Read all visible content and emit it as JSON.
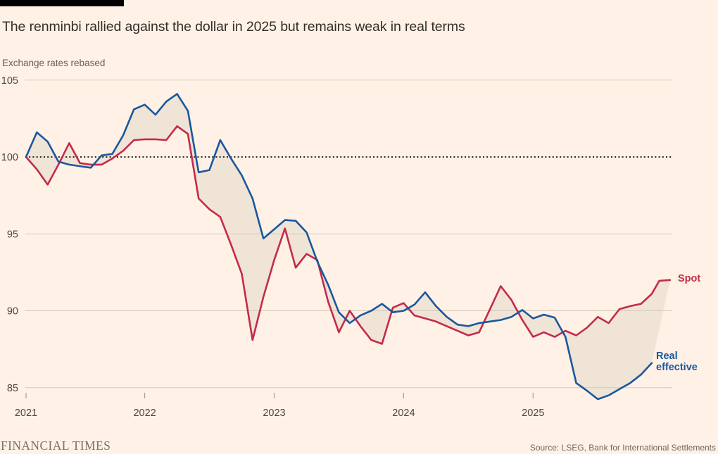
{
  "header": {
    "title": "The renminbi rallied against the dollar in 2025 but remains weak in real terms",
    "subtitle": "Exchange rates rebased"
  },
  "legend": {
    "spot": "Spot",
    "real_effective": "Real effective"
  },
  "footer": {
    "brand": "FINANCIAL TIMES",
    "source": "Source: LSEG, Bank for International Settlements"
  },
  "colors": {
    "background": "#fff1e5",
    "top_bar": "#000000",
    "title_text": "#33302a",
    "muted_text": "#66605b",
    "axis_text": "#4d4742",
    "tick_mark": "#a89e92",
    "grid": "#d5cabd",
    "baseline_dotted": "#2b2824",
    "spot": "#c42a4c",
    "real_effective": "#1a579e",
    "band_fill": "#f0e4d6",
    "brand_text": "#7a7166"
  },
  "chart_data": {
    "type": "line",
    "title": "The renminbi rallied against the dollar in 2025 but remains weak in real terms",
    "ylabel": "Exchange rates rebased",
    "baseline": 100,
    "y_ticks": [
      105,
      100,
      95,
      90,
      85
    ],
    "ylim": [
      83.5,
      105.8
    ],
    "grid": "horizontal",
    "legend_position": "end-of-line-labels",
    "x_unit": "months since 2021-02 (first point Feb 2021, rebased = 100)",
    "x_ticks": [
      {
        "label": "2021",
        "m": 0
      },
      {
        "label": "2022",
        "m": 11
      },
      {
        "label": "2023",
        "m": 23
      },
      {
        "label": "2024",
        "m": 35
      },
      {
        "label": "2025",
        "m": 47
      }
    ],
    "band_between_series": true,
    "series": [
      {
        "name": "Spot",
        "color": "#c42a4c",
        "points": [
          [
            0,
            100
          ],
          [
            1,
            99.2
          ],
          [
            2,
            98.2
          ],
          [
            3,
            99.5
          ],
          [
            4,
            100.9
          ],
          [
            5,
            99.6
          ],
          [
            6,
            99.5
          ],
          [
            7,
            99.5
          ],
          [
            8,
            99.9
          ],
          [
            9,
            100.4
          ],
          [
            10,
            101.1
          ],
          [
            11,
            101.15
          ],
          [
            12,
            101.15
          ],
          [
            13,
            101.1
          ],
          [
            14,
            102.0
          ],
          [
            15,
            101.5
          ],
          [
            16,
            97.3
          ],
          [
            17,
            96.6
          ],
          [
            18,
            96.1
          ],
          [
            19,
            94.3
          ],
          [
            20,
            92.4
          ],
          [
            21,
            88.1
          ],
          [
            22,
            90.9
          ],
          [
            23,
            93.3
          ],
          [
            24,
            95.35
          ],
          [
            25,
            92.8
          ],
          [
            26,
            93.7
          ],
          [
            27,
            93.3
          ],
          [
            28,
            90.6
          ],
          [
            29,
            88.6
          ],
          [
            30,
            90.0
          ],
          [
            31,
            89.0
          ],
          [
            32,
            88.1
          ],
          [
            33,
            87.85
          ],
          [
            34,
            90.2
          ],
          [
            35,
            90.5
          ],
          [
            36,
            89.7
          ],
          [
            37,
            89.5
          ],
          [
            38,
            89.3
          ],
          [
            39,
            89.0
          ],
          [
            40,
            88.7
          ],
          [
            41,
            88.4
          ],
          [
            42,
            88.6
          ],
          [
            43,
            90.1
          ],
          [
            44,
            91.6
          ],
          [
            45,
            90.7
          ],
          [
            46,
            89.4
          ],
          [
            47,
            88.3
          ],
          [
            48,
            88.6
          ],
          [
            49,
            88.3
          ],
          [
            50,
            88.7
          ],
          [
            51,
            88.4
          ],
          [
            52,
            88.9
          ],
          [
            53,
            89.6
          ],
          [
            54,
            89.2
          ],
          [
            55,
            90.1
          ],
          [
            56,
            90.3
          ],
          [
            57,
            90.45
          ],
          [
            58,
            91.1
          ],
          [
            58.7,
            91.95
          ],
          [
            59.7,
            92.0
          ]
        ]
      },
      {
        "name": "Real effective",
        "color": "#1a579e",
        "points": [
          [
            0,
            100
          ],
          [
            1,
            101.6
          ],
          [
            2,
            101.0
          ],
          [
            3,
            99.7
          ],
          [
            4,
            99.5
          ],
          [
            5,
            99.4
          ],
          [
            6,
            99.3
          ],
          [
            7,
            100.1
          ],
          [
            8,
            100.2
          ],
          [
            9,
            101.4
          ],
          [
            10,
            103.1
          ],
          [
            11,
            103.4
          ],
          [
            12,
            102.75
          ],
          [
            13,
            103.6
          ],
          [
            14,
            104.1
          ],
          [
            15,
            103.0
          ],
          [
            16,
            99.0
          ],
          [
            17,
            99.15
          ],
          [
            18,
            101.1
          ],
          [
            19,
            99.9
          ],
          [
            20,
            98.8
          ],
          [
            21,
            97.3
          ],
          [
            22,
            94.7
          ],
          [
            23,
            95.3
          ],
          [
            24,
            95.9
          ],
          [
            25,
            95.85
          ],
          [
            26,
            95.1
          ],
          [
            27,
            93.2
          ],
          [
            28,
            91.7
          ],
          [
            29,
            89.9
          ],
          [
            30,
            89.2
          ],
          [
            31,
            89.7
          ],
          [
            32,
            90.0
          ],
          [
            33,
            90.45
          ],
          [
            34,
            89.9
          ],
          [
            35,
            90.0
          ],
          [
            36,
            90.4
          ],
          [
            37,
            91.2
          ],
          [
            38,
            90.3
          ],
          [
            39,
            89.6
          ],
          [
            40,
            89.1
          ],
          [
            41,
            89.0
          ],
          [
            42,
            89.2
          ],
          [
            43,
            89.3
          ],
          [
            44,
            89.4
          ],
          [
            45,
            89.6
          ],
          [
            46,
            90.05
          ],
          [
            47,
            89.5
          ],
          [
            48,
            89.75
          ],
          [
            49,
            89.55
          ],
          [
            50,
            88.3
          ],
          [
            51,
            85.3
          ],
          [
            52,
            84.8
          ],
          [
            53,
            84.25
          ],
          [
            54,
            84.5
          ],
          [
            55,
            84.9
          ],
          [
            56,
            85.3
          ],
          [
            57,
            85.85
          ],
          [
            58,
            86.6
          ]
        ]
      }
    ]
  }
}
